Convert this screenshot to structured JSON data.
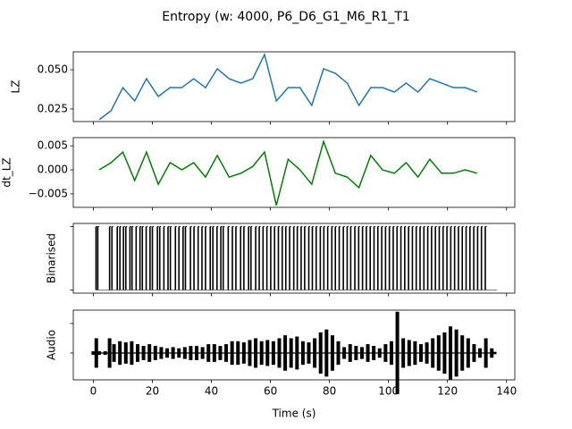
{
  "chart_data": [
    {
      "type": "line",
      "title": "Entropy (w: 4000, P6_D6_G1_M6_R1_T1",
      "ylabel": "LZ",
      "color": "#1f77b4",
      "x": [
        2,
        6,
        10,
        14,
        18,
        22,
        26,
        30,
        34,
        38,
        42,
        46,
        50,
        54,
        58,
        62,
        66,
        70,
        74,
        78,
        82,
        86,
        90,
        94,
        98,
        102,
        106,
        110,
        114,
        118,
        122,
        126,
        130
      ],
      "values": [
        0.0182,
        0.0239,
        0.0386,
        0.0301,
        0.0443,
        0.033,
        0.0386,
        0.0386,
        0.0443,
        0.0386,
        0.0506,
        0.0443,
        0.0415,
        0.0443,
        0.0597,
        0.0301,
        0.0386,
        0.0386,
        0.0273,
        0.0506,
        0.0477,
        0.0415,
        0.0273,
        0.0386,
        0.0386,
        0.0358,
        0.0415,
        0.0358,
        0.0443,
        0.0415,
        0.0386,
        0.0386,
        0.0358
      ],
      "xlim": [
        -6.8,
        142.8
      ],
      "xticks": [
        0,
        20,
        40,
        60,
        80,
        100,
        120,
        140
      ],
      "ylim": [
        0.017,
        0.0614
      ],
      "yticks": [
        {
          "value": 0.025,
          "label": "0.025"
        },
        {
          "value": 0.05,
          "label": "0.050"
        }
      ]
    },
    {
      "type": "line",
      "ylabel": "dt_LZ",
      "color": "#008000",
      "x": [
        2,
        6,
        10,
        14,
        18,
        22,
        26,
        30,
        34,
        38,
        42,
        46,
        50,
        54,
        58,
        62,
        66,
        70,
        74,
        78,
        82,
        86,
        90,
        94,
        98,
        102,
        106,
        110,
        114,
        118,
        122,
        126,
        130
      ],
      "values": [
        0,
        0.0015,
        0.0037,
        -0.0022,
        0.0037,
        -0.003,
        0.0015,
        0,
        0.0015,
        -0.0015,
        0.003,
        -0.0015,
        -0.0007,
        0.0007,
        0.0037,
        -0.0074,
        0.0022,
        0,
        -0.003,
        0.0059,
        -0.0007,
        -0.0015,
        -0.0037,
        0.003,
        0,
        -0.0007,
        0.0015,
        -0.0015,
        0.0022,
        -0.0007,
        -0.0007,
        0,
        -0.0007
      ],
      "xlim": [
        -6.8,
        142.8
      ],
      "xticks": [
        0,
        20,
        40,
        60,
        80,
        100,
        120,
        140
      ],
      "ylim": [
        -0.0078,
        0.0067
      ],
      "yticks": [
        {
          "value": -0.005,
          "label": "−0.005"
        },
        {
          "value": 0,
          "label": "0.000"
        },
        {
          "value": 0.005,
          "label": "0.005"
        }
      ]
    },
    {
      "type": "event",
      "ylabel": "Binarised",
      "color": "#000000",
      "baseline_color": "#808080",
      "x": [
        0.9,
        1.5,
        5.5,
        6.3,
        8.1,
        9.0,
        10.2,
        11.0,
        12.4,
        13.1,
        14.5,
        15.8,
        16.6,
        17.9,
        19.2,
        20.0,
        21.7,
        22.5,
        23.9,
        25.3,
        26.1,
        27.8,
        29.0,
        30.4,
        31.2,
        32.9,
        34.1,
        35.5,
        36.8,
        38.0,
        39.6,
        40.5,
        41.9,
        43.2,
        44.0,
        45.7,
        47.1,
        48.3,
        49.9,
        51.0,
        52.6,
        53.4,
        55.0,
        56.2,
        57.5,
        58.8,
        60.1,
        61.4,
        62.7,
        64.0,
        65.2,
        66.5,
        67.9,
        69.1,
        70.4,
        71.6,
        73.0,
        74.2,
        75.5,
        76.9,
        78.1,
        79.4,
        80.8,
        82.0,
        83.3,
        84.7,
        86.0,
        87.2,
        88.6,
        89.9,
        91.2,
        92.5,
        93.8,
        95.1,
        96.4,
        97.7,
        99.0,
        100.3,
        101.6,
        102.9,
        104.2,
        105.5,
        106.8,
        108.1,
        109.4,
        110.7,
        112.0,
        113.3,
        114.6,
        115.9,
        117.2,
        118.5,
        119.8,
        121.1,
        122.4,
        123.7,
        125.0,
        126.3,
        127.6,
        128.9,
        130.2,
        131.5,
        132.8
      ],
      "values": [
        1,
        1,
        1,
        1,
        1,
        1,
        1,
        1,
        1,
        1,
        1,
        1,
        1,
        1,
        1,
        1,
        1,
        1,
        1,
        1,
        1,
        1,
        1,
        1,
        1,
        1,
        1,
        1,
        1,
        1,
        1,
        1,
        1,
        1,
        1,
        1,
        1,
        1,
        1,
        1,
        1,
        1,
        1,
        1,
        1,
        1,
        1,
        1,
        1,
        1,
        1,
        1,
        1,
        1,
        1,
        1,
        1,
        1,
        1,
        1,
        1,
        1,
        1,
        1,
        1,
        1,
        1,
        1,
        1,
        1,
        1,
        1,
        1,
        1,
        1,
        1,
        1,
        1,
        1,
        1,
        1,
        1,
        1,
        1,
        1,
        1,
        1,
        1,
        1,
        1,
        1,
        1,
        1,
        1,
        1,
        1,
        1,
        1,
        1,
        1,
        1,
        1,
        1
      ],
      "xlim": [
        -6.8,
        142.8
      ],
      "xticks": [
        0,
        20,
        40,
        60,
        80,
        100,
        120,
        140
      ],
      "ylim": [
        -0.05,
        1.05
      ],
      "yticks": [
        0,
        1
      ]
    },
    {
      "type": "envelope",
      "ylabel": "Audio",
      "xlabel": "Time (s)",
      "color": "#000000",
      "x": [
        0,
        1,
        2,
        4,
        5.5,
        7,
        9,
        11,
        13,
        15,
        17,
        19,
        21,
        23,
        25,
        27,
        29,
        31,
        33,
        35,
        37,
        39,
        41,
        43,
        45,
        47,
        49,
        51,
        53,
        55,
        57,
        59,
        61,
        63,
        65,
        67,
        69,
        71,
        73,
        75,
        77,
        79,
        81,
        83,
        85,
        87,
        89,
        91,
        93,
        95,
        97,
        99,
        101,
        103,
        105,
        107,
        109,
        111,
        113,
        115,
        117,
        119,
        121,
        123,
        125,
        127,
        129,
        131,
        133,
        135,
        136
      ],
      "values": [
        0.03,
        0.25,
        0.03,
        0.03,
        0.25,
        0.15,
        0.2,
        0.18,
        0.2,
        0.15,
        0.12,
        0.15,
        0.12,
        0.1,
        0.08,
        0.1,
        0.08,
        0.1,
        0.12,
        0.12,
        0.1,
        0.15,
        0.15,
        0.12,
        0.15,
        0.2,
        0.2,
        0.18,
        0.22,
        0.25,
        0.2,
        0.22,
        0.2,
        0.25,
        0.3,
        0.25,
        0.28,
        0.2,
        0.18,
        0.25,
        0.35,
        0.4,
        0.3,
        0.2,
        0.1,
        0.15,
        0.12,
        0.1,
        0.15,
        0.12,
        0.08,
        0.15,
        0.2,
        0.7,
        0.25,
        0.22,
        0.2,
        0.15,
        0.18,
        0.25,
        0.3,
        0.35,
        0.45,
        0.4,
        0.3,
        0.25,
        0.15,
        0.08,
        0.25,
        0.08,
        0.02
      ],
      "xlim": [
        -6.8,
        142.8
      ],
      "xticks": [
        0,
        20,
        40,
        60,
        80,
        100,
        120,
        140
      ],
      "ylim": [
        -0.455,
        0.727
      ],
      "yticks": [
        0,
        0.5
      ]
    }
  ]
}
